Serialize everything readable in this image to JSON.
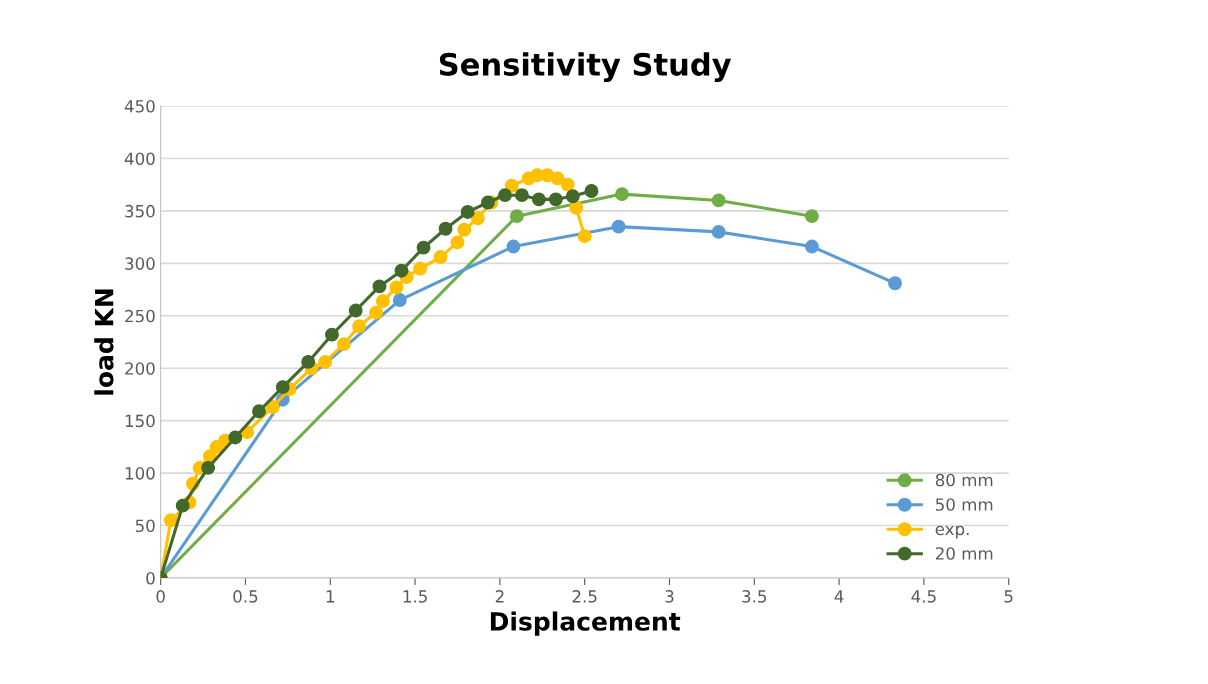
{
  "chart_data": {
    "type": "line",
    "title": "Sensitivity Study",
    "xlabel": "Displacement",
    "ylabel": "load KN",
    "xlim": [
      0,
      5
    ],
    "xticks": [
      0,
      0.5,
      1,
      1.5,
      2,
      2.5,
      3,
      3.5,
      4,
      4.5,
      5
    ],
    "ylim": [
      0,
      450
    ],
    "yticks": [
      0,
      50,
      100,
      150,
      200,
      250,
      300,
      350,
      400,
      450
    ],
    "grid": "y",
    "legend": "lower right",
    "marker": "circle",
    "line_style": "solid",
    "series": [
      {
        "name": "80 mm",
        "color": "#70ad47",
        "x": [
          0,
          2.1,
          2.72,
          3.29,
          3.84
        ],
        "values": [
          0,
          345,
          366,
          360,
          345
        ]
      },
      {
        "name": "50 mm",
        "color": "#5b9bd5",
        "x": [
          0,
          0.72,
          1.41,
          2.08,
          2.7,
          3.29,
          3.84,
          4.33
        ],
        "values": [
          0,
          170,
          265,
          316,
          335,
          330,
          316,
          281
        ]
      },
      {
        "name": "exp.",
        "color": "#ffc000",
        "x": [
          0,
          0.06,
          0.17,
          0.19,
          0.23,
          0.29,
          0.33,
          0.38,
          0.51,
          0.66,
          0.76,
          0.89,
          0.97,
          1.08,
          1.17,
          1.27,
          1.31,
          1.39,
          1.45,
          1.53,
          1.65,
          1.75,
          1.79,
          1.87,
          1.95,
          2.07,
          2.17,
          2.22,
          2.28,
          2.34,
          2.4,
          2.45,
          2.5
        ],
        "values": [
          0,
          55,
          72,
          90,
          105,
          116,
          125,
          131,
          139,
          163,
          180,
          200,
          206,
          223,
          240,
          253,
          264,
          277,
          287,
          295,
          306,
          320,
          332,
          343,
          358,
          374,
          381,
          384,
          384,
          381,
          375,
          353,
          326
        ]
      },
      {
        "name": "20 mm",
        "color": "#43682b",
        "x": [
          0,
          0.13,
          0.28,
          0.44,
          0.58,
          0.72,
          0.87,
          1.01,
          1.15,
          1.29,
          1.42,
          1.55,
          1.68,
          1.81,
          1.93,
          2.03,
          2.13,
          2.23,
          2.33,
          2.43,
          2.54
        ],
        "values": [
          0,
          69,
          105,
          134,
          159,
          182,
          206,
          232,
          255,
          278,
          293,
          315,
          333,
          349,
          358,
          365,
          365,
          361,
          361,
          364,
          369
        ]
      }
    ]
  }
}
